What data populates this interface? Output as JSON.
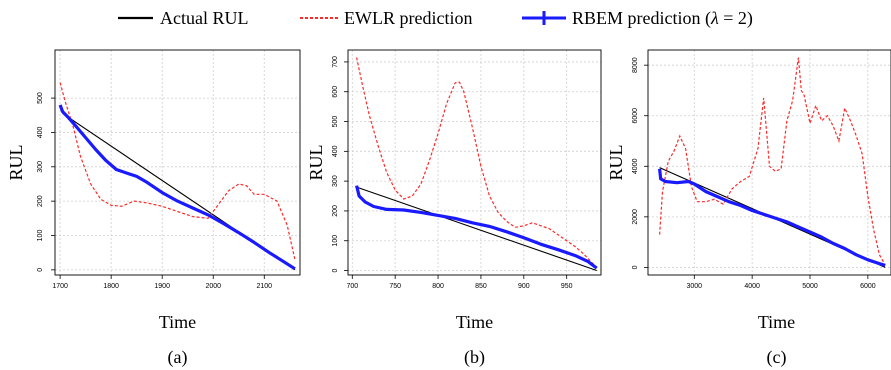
{
  "legend": {
    "actual": "Actual RUL",
    "ewlr": "EWLR prediction",
    "rbem_prefix": "RBEM prediction (",
    "rbem_lambda": "λ",
    "rbem_suffix": " = 2)"
  },
  "colors": {
    "actual": "#000000",
    "ewlr": "#ff2a2a",
    "rbem": "#1a1aff"
  },
  "chart_data": [
    {
      "type": "line",
      "panel_label": "(a)",
      "xlabel": "Time",
      "ylabel": "RUL",
      "xlim": [
        1690,
        2170
      ],
      "ylim": [
        -15,
        640
      ],
      "xticks": [
        1700,
        1800,
        1900,
        2000,
        2100
      ],
      "yticks": [
        0,
        100,
        200,
        300,
        400,
        500
      ],
      "grid": true,
      "series": [
        {
          "name": "Actual RUL",
          "x": [
            1705,
            2160
          ],
          "y": [
            455,
            0
          ]
        },
        {
          "name": "EWLR prediction",
          "x": [
            1700,
            1710,
            1725,
            1740,
            1760,
            1780,
            1800,
            1820,
            1845,
            1870,
            1900,
            1930,
            1960,
            1990,
            2010,
            2030,
            2050,
            2065,
            2080,
            2100,
            2125,
            2145,
            2160
          ],
          "y": [
            545,
            490,
            420,
            330,
            250,
            205,
            188,
            185,
            200,
            195,
            185,
            170,
            155,
            150,
            190,
            230,
            250,
            245,
            220,
            220,
            200,
            130,
            30
          ]
        },
        {
          "name": "RBEM prediction (λ = 2)",
          "x": [
            1700,
            1705,
            1715,
            1730,
            1750,
            1770,
            1790,
            1810,
            1830,
            1850,
            1870,
            1900,
            1930,
            1960,
            1990,
            2020,
            2050,
            2080,
            2110,
            2140,
            2160
          ],
          "y": [
            480,
            460,
            445,
            420,
            385,
            350,
            318,
            292,
            282,
            272,
            255,
            225,
            200,
            180,
            160,
            135,
            108,
            80,
            50,
            22,
            3
          ]
        }
      ]
    },
    {
      "type": "line",
      "panel_label": "(b)",
      "xlabel": "Time",
      "ylabel": "RUL",
      "xlim": [
        695,
        990
      ],
      "ylim": [
        -15,
        740
      ],
      "xticks": [
        700,
        750,
        800,
        850,
        900,
        950
      ],
      "yticks": [
        0,
        100,
        200,
        300,
        400,
        500,
        600,
        700
      ],
      "grid": true,
      "series": [
        {
          "name": "Actual RUL",
          "x": [
            705,
            985
          ],
          "y": [
            280,
            0
          ]
        },
        {
          "name": "EWLR prediction",
          "x": [
            705,
            712,
            720,
            730,
            740,
            750,
            760,
            770,
            780,
            790,
            800,
            810,
            820,
            825,
            830,
            840,
            850,
            860,
            870,
            880,
            890,
            900,
            910,
            920,
            930,
            940,
            950,
            960,
            970,
            980,
            985
          ],
          "y": [
            715,
            620,
            520,
            420,
            330,
            270,
            240,
            250,
            290,
            370,
            460,
            560,
            630,
            632,
            600,
            480,
            350,
            250,
            195,
            165,
            145,
            150,
            160,
            150,
            140,
            120,
            100,
            80,
            55,
            25,
            10
          ]
        },
        {
          "name": "RBEM prediction (λ = 2)",
          "x": [
            705,
            708,
            715,
            725,
            740,
            760,
            780,
            800,
            820,
            840,
            860,
            880,
            900,
            920,
            940,
            960,
            975,
            985
          ],
          "y": [
            285,
            250,
            230,
            215,
            205,
            203,
            195,
            185,
            175,
            160,
            148,
            130,
            110,
            88,
            70,
            50,
            30,
            8
          ]
        }
      ]
    },
    {
      "type": "line",
      "panel_label": "(c)",
      "xlabel": "Time",
      "ylabel": "RUL",
      "xlim": [
        2200,
        6400
      ],
      "ylim": [
        -300,
        8600
      ],
      "xticks": [
        3000,
        4000,
        5000,
        6000
      ],
      "yticks": [
        0,
        2000,
        4000,
        6000,
        8000
      ],
      "grid": true,
      "series": [
        {
          "name": "Actual RUL",
          "x": [
            2400,
            6300
          ],
          "y": [
            3950,
            0
          ]
        },
        {
          "name": "EWLR prediction",
          "x": [
            2400,
            2450,
            2550,
            2650,
            2750,
            2850,
            2950,
            3050,
            3200,
            3350,
            3500,
            3650,
            3800,
            3950,
            4100,
            4200,
            4300,
            4400,
            4500,
            4600,
            4700,
            4800,
            4850,
            4900,
            5000,
            5100,
            5200,
            5300,
            5400,
            5500,
            5600,
            5700,
            5800,
            5900,
            6000,
            6100,
            6200,
            6300
          ],
          "y": [
            1300,
            3000,
            4200,
            4600,
            5200,
            4700,
            3200,
            2600,
            2600,
            2700,
            2500,
            3100,
            3400,
            3600,
            4700,
            6700,
            4000,
            3800,
            3900,
            5800,
            6600,
            8300,
            7000,
            6800,
            5700,
            6400,
            5800,
            6000,
            5600,
            5000,
            6300,
            5800,
            5200,
            4500,
            2800,
            1500,
            500,
            100
          ]
        },
        {
          "name": "RBEM prediction (λ = 2)",
          "x": [
            2400,
            2420,
            2500,
            2700,
            2900,
            3000,
            3200,
            3400,
            3600,
            3800,
            4000,
            4200,
            4400,
            4600,
            4800,
            5000,
            5200,
            5400,
            5600,
            5800,
            6000,
            6200,
            6300
          ],
          "y": [
            3900,
            3500,
            3400,
            3350,
            3400,
            3300,
            3000,
            2800,
            2600,
            2450,
            2250,
            2100,
            1950,
            1800,
            1600,
            1400,
            1200,
            950,
            750,
            500,
            300,
            150,
            80
          ]
        }
      ]
    }
  ]
}
